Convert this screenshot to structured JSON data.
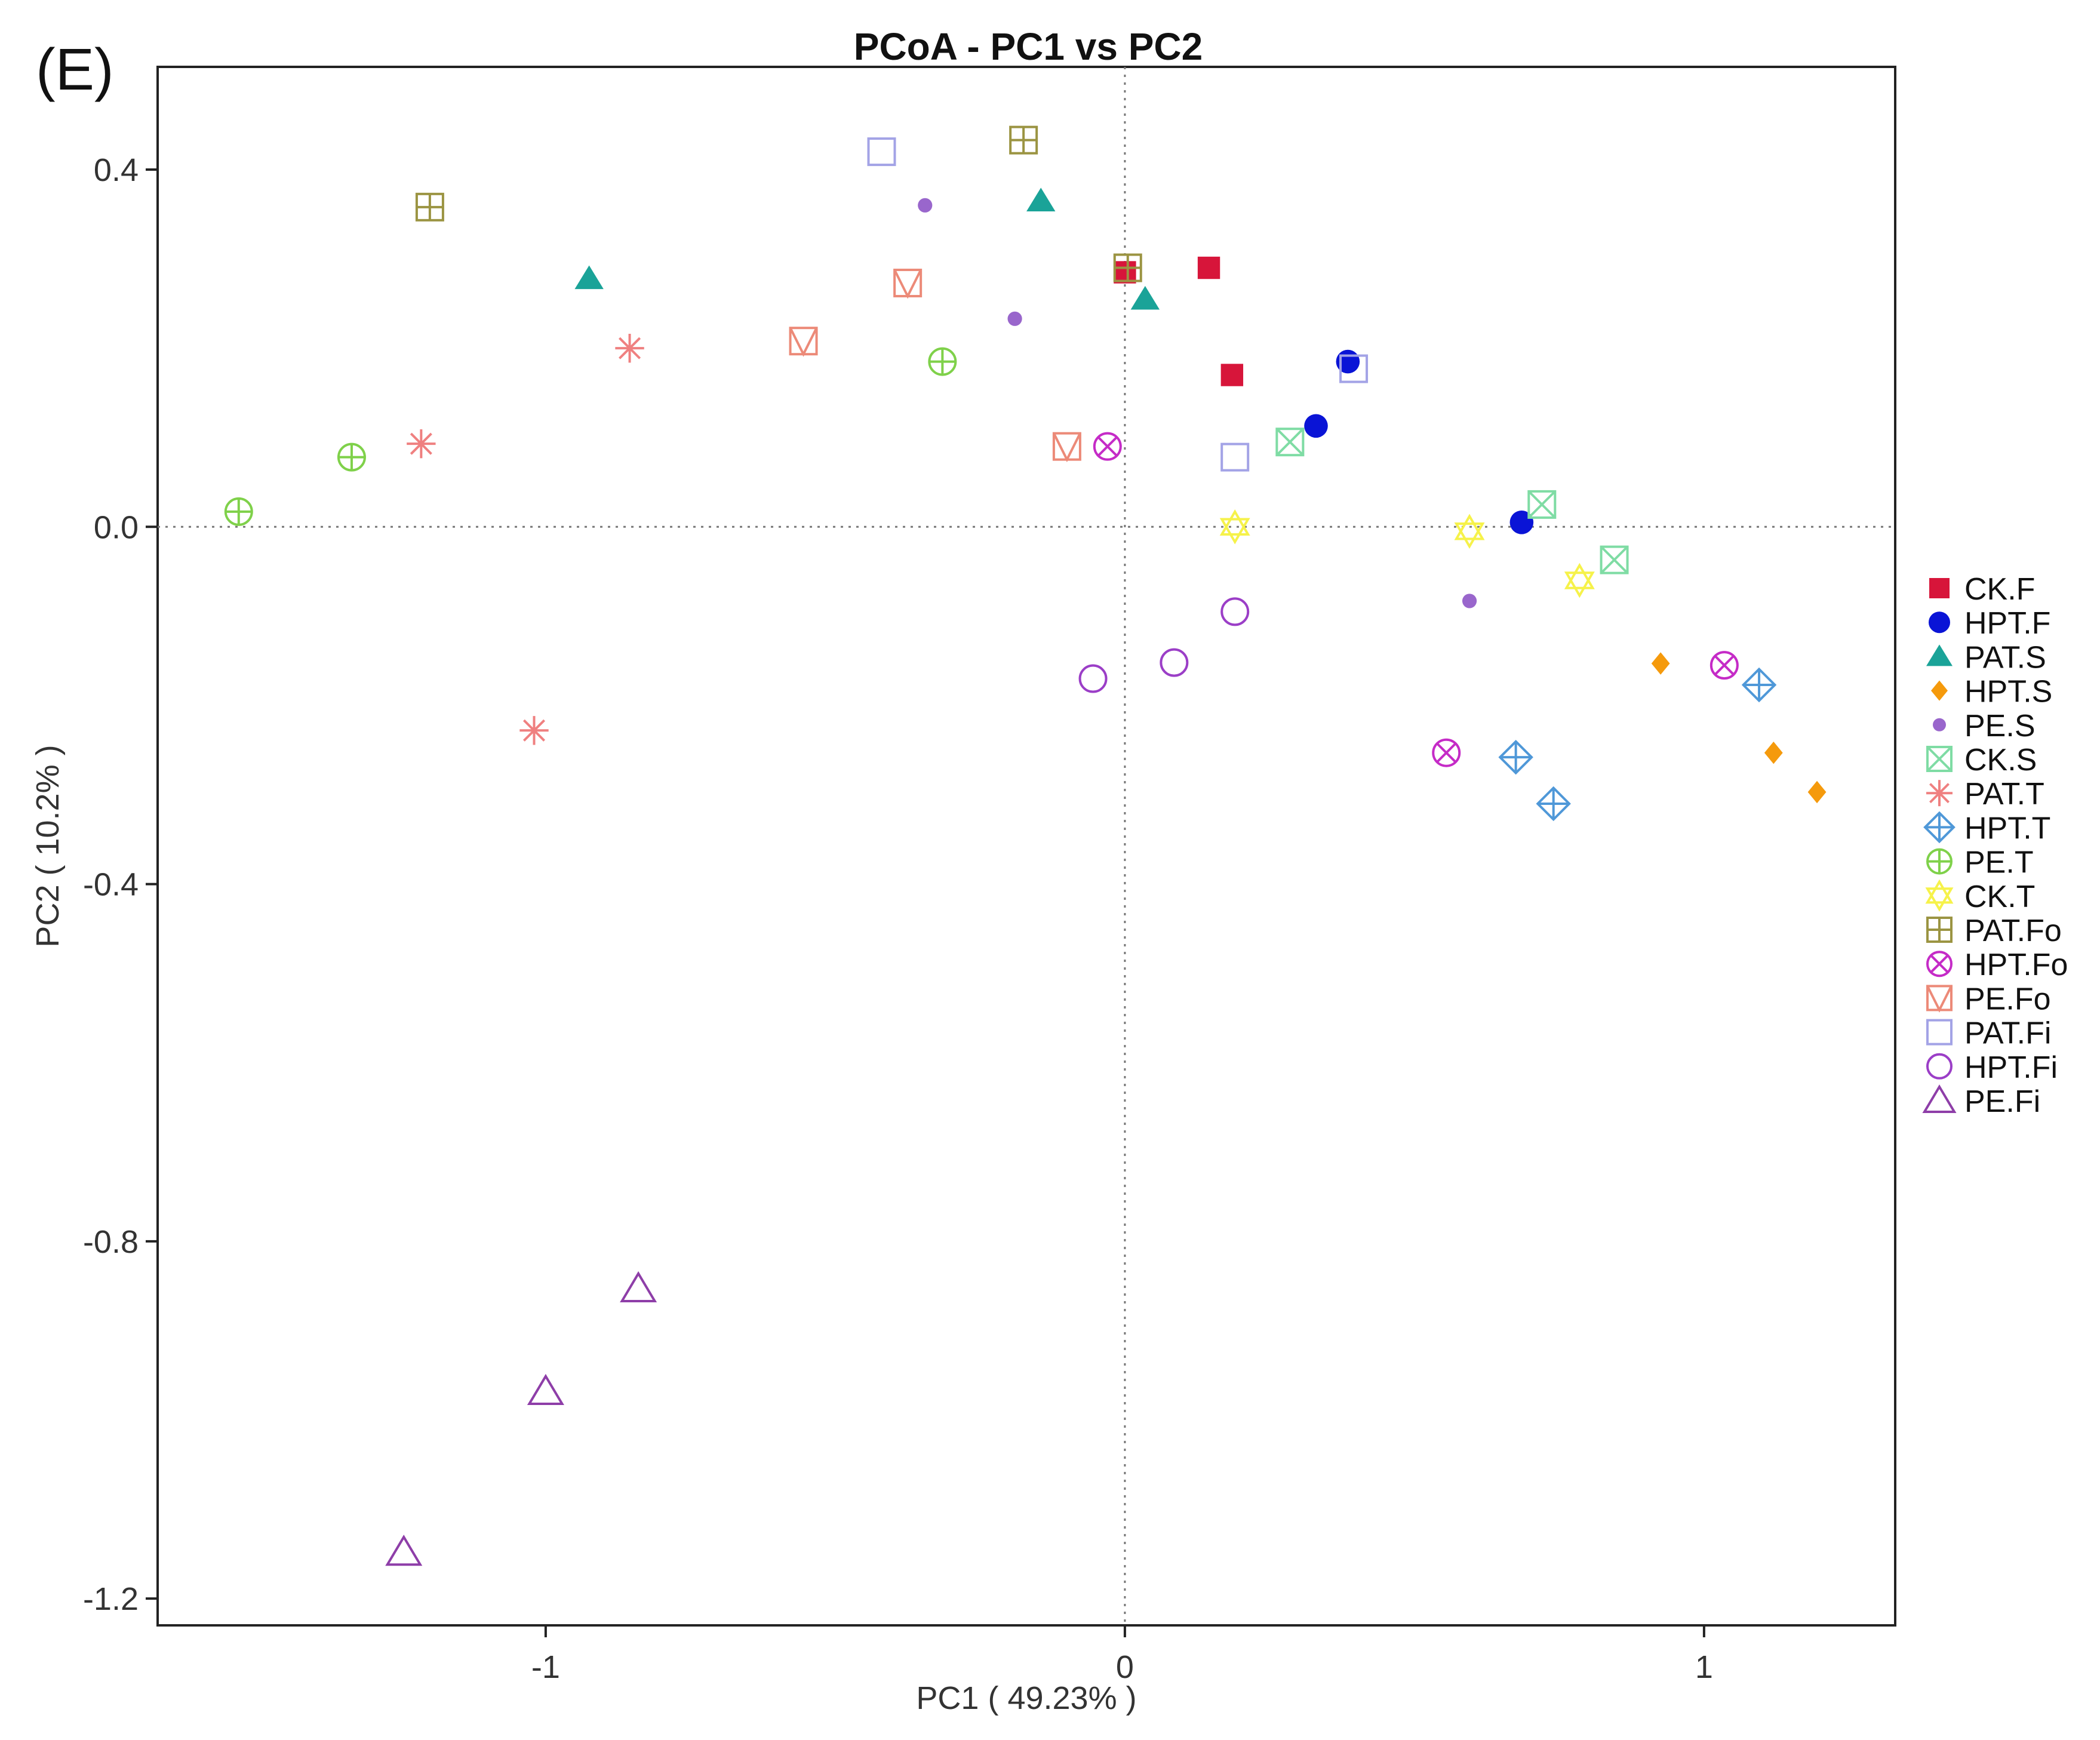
{
  "panel_label": "(E)",
  "chart_data": {
    "type": "scatter",
    "title": "PCoA - PC1 vs PC2",
    "xlabel": "PC1 ( 49.23% )",
    "ylabel": "PC2 ( 10.2% )",
    "xlim": [
      -1.67,
      1.33
    ],
    "ylim": [
      -1.23,
      0.515
    ],
    "xticks": [
      {
        "value": -1,
        "label": "-1"
      },
      {
        "value": 0,
        "label": "0"
      },
      {
        "value": 1,
        "label": "1"
      }
    ],
    "yticks": [
      {
        "value": 0.4,
        "label": "0.4"
      },
      {
        "value": 0.0,
        "label": "0.0"
      },
      {
        "value": -0.4,
        "label": "-0.4"
      },
      {
        "value": -0.8,
        "label": "-0.8"
      },
      {
        "value": -1.2,
        "label": "-1.2"
      }
    ],
    "reference_lines": {
      "x": 0,
      "y": 0,
      "style": "dotted"
    },
    "grid": false,
    "legend_position": "right",
    "series": [
      {
        "name": "CK.F",
        "marker": "square-filled",
        "color": "#d7153a",
        "points": [
          [
            0.0,
            0.285
          ],
          [
            0.145,
            0.29
          ],
          [
            0.185,
            0.17
          ]
        ]
      },
      {
        "name": "HPT.F",
        "marker": "circle-filled",
        "color": "#0a14d6",
        "points": [
          [
            0.385,
            0.185
          ],
          [
            0.33,
            0.113
          ],
          [
            0.685,
            0.005
          ]
        ]
      },
      {
        "name": "PAT.S",
        "marker": "triangle-filled",
        "color": "#1aa398",
        "points": [
          [
            -0.925,
            0.278
          ],
          [
            -0.145,
            0.365
          ],
          [
            0.035,
            0.255
          ]
        ]
      },
      {
        "name": "HPT.S",
        "marker": "diamond-filled",
        "color": "#f59a0c",
        "points": [
          [
            0.925,
            -0.153
          ],
          [
            1.12,
            -0.253
          ],
          [
            1.195,
            -0.297
          ]
        ]
      },
      {
        "name": "PE.S",
        "marker": "dot-filled",
        "color": "#9966cc",
        "points": [
          [
            -0.345,
            0.36
          ],
          [
            -0.19,
            0.233
          ],
          [
            0.595,
            -0.083
          ]
        ]
      },
      {
        "name": "CK.S",
        "marker": "square-x",
        "color": "#7fdca4",
        "points": [
          [
            0.285,
            0.095
          ],
          [
            0.72,
            0.025
          ],
          [
            0.845,
            -0.037
          ]
        ]
      },
      {
        "name": "PAT.T",
        "marker": "asterisk",
        "color": "#ef8080",
        "points": [
          [
            -0.855,
            0.2
          ],
          [
            -1.215,
            0.093
          ],
          [
            -1.02,
            -0.228
          ]
        ]
      },
      {
        "name": "HPT.T",
        "marker": "diamond-plus",
        "color": "#4f98d8",
        "points": [
          [
            0.675,
            -0.258
          ],
          [
            0.74,
            -0.31
          ],
          [
            1.095,
            -0.177
          ]
        ]
      },
      {
        "name": "PE.T",
        "marker": "circle-plus",
        "color": "#7fd14a",
        "points": [
          [
            -0.315,
            0.185
          ],
          [
            -1.335,
            0.078
          ],
          [
            -1.53,
            0.017
          ]
        ]
      },
      {
        "name": "CK.T",
        "marker": "star-of-david",
        "color": "#f6f24a",
        "points": [
          [
            0.19,
            0.0
          ],
          [
            0.595,
            -0.005
          ],
          [
            0.785,
            -0.06
          ]
        ]
      },
      {
        "name": "PAT.Fo",
        "marker": "square-plus",
        "color": "#9b9442",
        "points": [
          [
            -1.2,
            0.358
          ],
          [
            -0.175,
            0.433
          ],
          [
            0.005,
            0.29
          ]
        ]
      },
      {
        "name": "HPT.Fo",
        "marker": "circle-x",
        "color": "#c52bc7",
        "points": [
          [
            -0.03,
            0.09
          ],
          [
            0.555,
            -0.253
          ],
          [
            1.035,
            -0.155
          ]
        ]
      },
      {
        "name": "PE.Fo",
        "marker": "triangle-down-square",
        "color": "#ec8a78",
        "points": [
          [
            -0.555,
            0.208
          ],
          [
            -0.375,
            0.273
          ],
          [
            -0.1,
            0.09
          ]
        ]
      },
      {
        "name": "PAT.Fi",
        "marker": "square-open",
        "color": "#a3a3e6",
        "points": [
          [
            -0.42,
            0.42
          ],
          [
            0.19,
            0.078
          ],
          [
            0.395,
            0.177
          ]
        ]
      },
      {
        "name": "HPT.Fi",
        "marker": "circle-open",
        "color": "#9b3ec7",
        "points": [
          [
            -0.055,
            -0.17
          ],
          [
            0.085,
            -0.152
          ],
          [
            0.19,
            -0.095
          ]
        ]
      },
      {
        "name": "PE.Fi",
        "marker": "triangle-open",
        "color": "#8e3ea8",
        "points": [
          [
            -0.84,
            -0.853
          ],
          [
            -1.0,
            -0.968
          ],
          [
            -1.245,
            -1.148
          ]
        ]
      }
    ]
  }
}
